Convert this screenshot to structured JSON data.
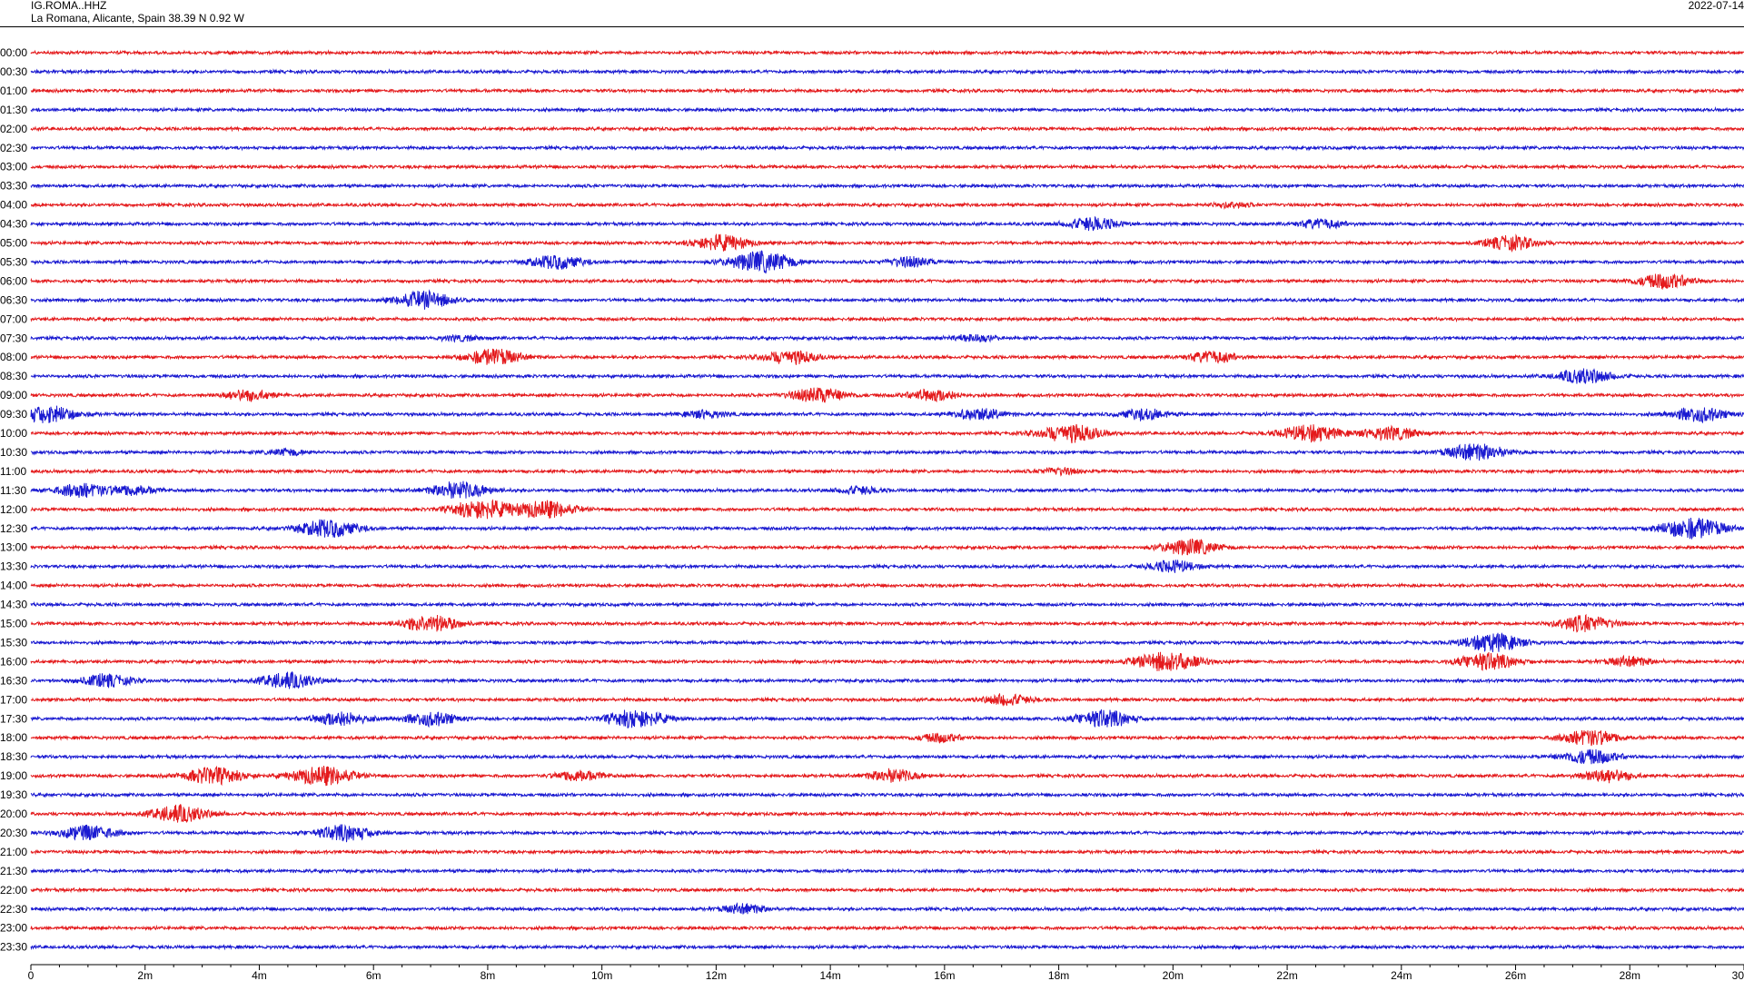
{
  "header": {
    "station_code": "IG.ROMA..HHZ",
    "location": "La Romana, Alicante, Spain  38.39 N 0.92 W",
    "date": "2022-07-14"
  },
  "chart_data": {
    "type": "line",
    "colors": [
      "#e41a1c",
      "#1a1ad1"
    ],
    "rows": [
      "00:00",
      "00:30",
      "01:00",
      "01:30",
      "02:00",
      "02:30",
      "03:00",
      "03:30",
      "04:00",
      "04:30",
      "05:00",
      "05:30",
      "06:00",
      "06:30",
      "07:00",
      "07:30",
      "08:00",
      "08:30",
      "09:00",
      "09:30",
      "10:00",
      "10:30",
      "11:00",
      "11:30",
      "12:00",
      "12:30",
      "13:00",
      "13:30",
      "14:00",
      "14:30",
      "15:00",
      "15:30",
      "16:00",
      "16:30",
      "17:00",
      "17:30",
      "18:00",
      "18:30",
      "19:00",
      "19:30",
      "20:00",
      "20:30",
      "21:00",
      "21:30",
      "22:00",
      "22:30",
      "23:00",
      "23:30"
    ],
    "x_ticks": [
      "0",
      "2m",
      "4m",
      "6m",
      "8m",
      "10m",
      "12m",
      "14m",
      "16m",
      "18m",
      "20m",
      "22m",
      "24m",
      "26m",
      "28m",
      "30"
    ],
    "xlim": [
      0,
      30
    ],
    "events": [
      {
        "row": 8,
        "min": 21.0,
        "amp": 0.5
      },
      {
        "row": 9,
        "min": 18.6,
        "amp": 1.2
      },
      {
        "row": 9,
        "min": 22.6,
        "amp": 0.9
      },
      {
        "row": 10,
        "min": 12.1,
        "amp": 1.5
      },
      {
        "row": 10,
        "min": 25.9,
        "amp": 1.3
      },
      {
        "row": 11,
        "min": 9.2,
        "amp": 1.3
      },
      {
        "row": 11,
        "min": 12.8,
        "amp": 2.0
      },
      {
        "row": 11,
        "min": 15.4,
        "amp": 0.9
      },
      {
        "row": 12,
        "min": 28.6,
        "amp": 1.4
      },
      {
        "row": 13,
        "min": 6.9,
        "amp": 1.6
      },
      {
        "row": 15,
        "min": 7.5,
        "amp": 0.5
      },
      {
        "row": 15,
        "min": 16.5,
        "amp": 0.7
      },
      {
        "row": 16,
        "min": 8.1,
        "amp": 1.5
      },
      {
        "row": 16,
        "min": 13.3,
        "amp": 1.3
      },
      {
        "row": 16,
        "min": 20.7,
        "amp": 1.1
      },
      {
        "row": 17,
        "min": 27.2,
        "amp": 1.4
      },
      {
        "row": 18,
        "min": 3.8,
        "amp": 1.0
      },
      {
        "row": 18,
        "min": 13.8,
        "amp": 1.4
      },
      {
        "row": 18,
        "min": 15.8,
        "amp": 1.1
      },
      {
        "row": 19,
        "min": 0.3,
        "amp": 1.6
      },
      {
        "row": 19,
        "min": 11.8,
        "amp": 0.7
      },
      {
        "row": 19,
        "min": 16.6,
        "amp": 1.1
      },
      {
        "row": 19,
        "min": 19.5,
        "amp": 1.0
      },
      {
        "row": 19,
        "min": 29.2,
        "amp": 1.4
      },
      {
        "row": 20,
        "min": 18.2,
        "amp": 1.7
      },
      {
        "row": 20,
        "min": 22.4,
        "amp": 1.6
      },
      {
        "row": 20,
        "min": 23.8,
        "amp": 1.3
      },
      {
        "row": 21,
        "min": 4.5,
        "amp": 0.6
      },
      {
        "row": 21,
        "min": 25.3,
        "amp": 1.6
      },
      {
        "row": 22,
        "min": 18.0,
        "amp": 0.6
      },
      {
        "row": 23,
        "min": 0.9,
        "amp": 1.3
      },
      {
        "row": 23,
        "min": 1.8,
        "amp": 0.9
      },
      {
        "row": 23,
        "min": 7.5,
        "amp": 1.6
      },
      {
        "row": 23,
        "min": 14.5,
        "amp": 0.7
      },
      {
        "row": 24,
        "min": 7.9,
        "amp": 1.8
      },
      {
        "row": 24,
        "min": 9.0,
        "amp": 1.6
      },
      {
        "row": 25,
        "min": 5.2,
        "amp": 1.7
      },
      {
        "row": 25,
        "min": 29.1,
        "amp": 2.0
      },
      {
        "row": 26,
        "min": 20.3,
        "amp": 1.5
      },
      {
        "row": 27,
        "min": 20.0,
        "amp": 1.1
      },
      {
        "row": 30,
        "min": 7.0,
        "amp": 1.6
      },
      {
        "row": 30,
        "min": 27.2,
        "amp": 1.5
      },
      {
        "row": 31,
        "min": 25.6,
        "amp": 1.7
      },
      {
        "row": 32,
        "min": 19.9,
        "amp": 1.9
      },
      {
        "row": 32,
        "min": 25.5,
        "amp": 1.6
      },
      {
        "row": 32,
        "min": 28.0,
        "amp": 0.9
      },
      {
        "row": 33,
        "min": 1.3,
        "amp": 1.2
      },
      {
        "row": 33,
        "min": 4.5,
        "amp": 1.5
      },
      {
        "row": 34,
        "min": 17.1,
        "amp": 1.0
      },
      {
        "row": 35,
        "min": 5.4,
        "amp": 1.3
      },
      {
        "row": 35,
        "min": 7.0,
        "amp": 1.3
      },
      {
        "row": 35,
        "min": 10.6,
        "amp": 1.7
      },
      {
        "row": 35,
        "min": 18.8,
        "amp": 1.6
      },
      {
        "row": 36,
        "min": 15.9,
        "amp": 0.8
      },
      {
        "row": 36,
        "min": 27.3,
        "amp": 1.5
      },
      {
        "row": 37,
        "min": 27.3,
        "amp": 1.4
      },
      {
        "row": 38,
        "min": 3.2,
        "amp": 1.6
      },
      {
        "row": 38,
        "min": 5.1,
        "amp": 1.8
      },
      {
        "row": 38,
        "min": 9.6,
        "amp": 1.0
      },
      {
        "row": 38,
        "min": 15.1,
        "amp": 1.2
      },
      {
        "row": 38,
        "min": 27.6,
        "amp": 1.2
      },
      {
        "row": 40,
        "min": 2.6,
        "amp": 1.6
      },
      {
        "row": 41,
        "min": 1.0,
        "amp": 1.4
      },
      {
        "row": 41,
        "min": 5.5,
        "amp": 1.5
      },
      {
        "row": 45,
        "min": 12.5,
        "amp": 0.9
      }
    ]
  }
}
